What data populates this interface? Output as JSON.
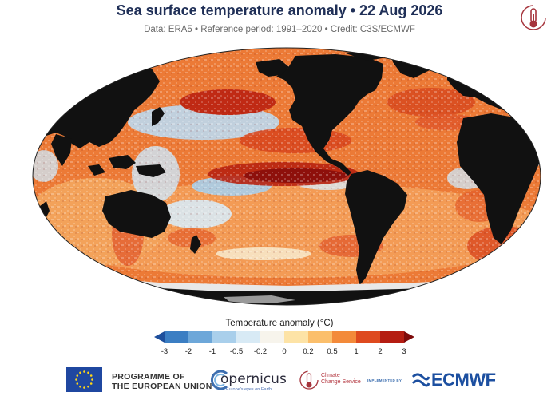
{
  "header": {
    "title": "Sea surface temperature anomaly • 22 Aug 2026",
    "subtitle": "Data: ERA5 • Reference period: 1991–2020 • Credit: C3S/ECMWF"
  },
  "legend": {
    "title": "Temperature anomaly (°C)",
    "ticks": [
      "-3",
      "-2",
      "-1",
      "-0.5",
      "-0.2",
      "0",
      "0.2",
      "0.5",
      "1",
      "2",
      "3"
    ],
    "colors": [
      "#1e4f9c",
      "#3b7ec3",
      "#6da7d9",
      "#a9cfeb",
      "#d8eaf5",
      "#f7f4ec",
      "#fde3a6",
      "#fbbf6c",
      "#f38a3a",
      "#de4a1f",
      "#b51d12",
      "#7e0b0b"
    ]
  },
  "map": {
    "land_color": "#111111",
    "ice_color": "#e8e8e8",
    "ocean_colors": {
      "warm_strong": "#b8220f",
      "warm": "#e8612a",
      "warm_light": "#f6a95a",
      "neutral": "#f4efe4",
      "cool": "#a9cfeb",
      "cool_strong": "#4b8bca"
    }
  },
  "footer": {
    "eu_line1": "PROGRAMME OF",
    "eu_line2": "THE EUROPEAN UNION",
    "copernicus": "opernicus",
    "copernicus_sub": "Europe's eyes on Earth",
    "c3s_line1": "Climate",
    "c3s_line2": "Change Service",
    "implemented_by": "IMPLEMENTED BY",
    "ecmwf": "ECMWF"
  }
}
